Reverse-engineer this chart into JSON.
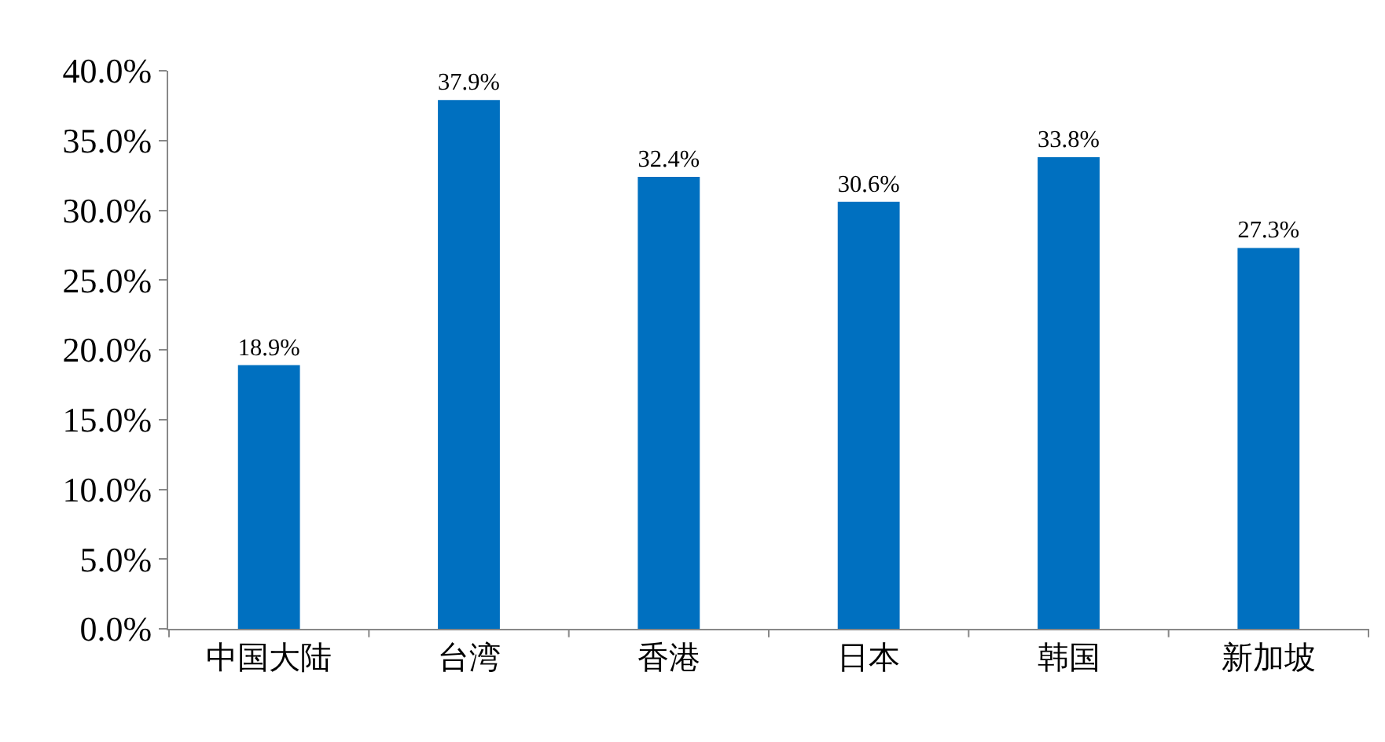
{
  "chart_data": {
    "type": "bar",
    "categories": [
      "中国大陆",
      "台湾",
      "香港",
      "日本",
      "韩国",
      "新加坡"
    ],
    "values": [
      18.9,
      37.9,
      32.4,
      30.6,
      33.8,
      27.3
    ],
    "value_labels": [
      "18.9%",
      "37.9%",
      "32.4%",
      "30.6%",
      "33.8%",
      "27.3%"
    ],
    "color": "#0070c0",
    "ylim": [
      0,
      40
    ],
    "yticks": [
      {
        "value": 0,
        "label": "0.0%"
      },
      {
        "value": 5,
        "label": "5.0%"
      },
      {
        "value": 10,
        "label": "10.0%"
      },
      {
        "value": 15,
        "label": "15.0%"
      },
      {
        "value": 20,
        "label": "20.0%"
      },
      {
        "value": 25,
        "label": "25.0%"
      },
      {
        "value": 30,
        "label": "30.0%"
      },
      {
        "value": 35,
        "label": "35.0%"
      },
      {
        "value": 40,
        "label": "40.0%"
      }
    ],
    "grid": false,
    "legend": false
  }
}
